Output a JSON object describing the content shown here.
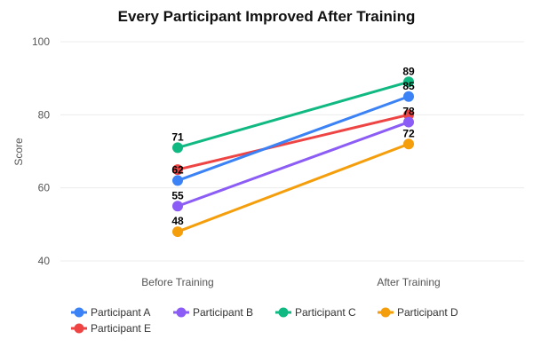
{
  "chart_data": {
    "type": "line",
    "title": "Every Participant Improved After Training",
    "xlabel": "",
    "ylabel": "Score",
    "categories": [
      "Before Training",
      "After Training"
    ],
    "ylim": [
      40,
      100
    ],
    "yticks": [
      40,
      60,
      80,
      100
    ],
    "grid": true,
    "legend": "bottom",
    "series": [
      {
        "name": "Participant A",
        "values": [
          62,
          85
        ],
        "color": "#3b82f6",
        "labels": true
      },
      {
        "name": "Participant B",
        "values": [
          55,
          78
        ],
        "color": "#8b5cf6",
        "labels": true
      },
      {
        "name": "Participant C",
        "values": [
          71,
          89
        ],
        "color": "#10b981",
        "labels": true
      },
      {
        "name": "Participant D",
        "values": [
          48,
          72
        ],
        "color": "#f59e0b",
        "labels": true
      },
      {
        "name": "Participant E",
        "values": [
          65,
          80
        ],
        "color": "#ef4444",
        "labels": false
      }
    ]
  }
}
